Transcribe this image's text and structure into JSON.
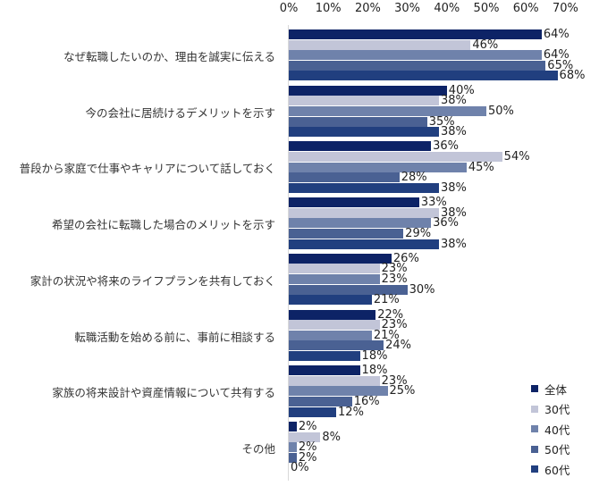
{
  "chart_data": {
    "type": "bar",
    "orientation": "horizontal",
    "title": "",
    "xlabel": "",
    "ylabel": "",
    "xlim": [
      0,
      70
    ],
    "x_ticks": [
      "0%",
      "10%",
      "20%",
      "30%",
      "40%",
      "50%",
      "60%",
      "70%"
    ],
    "grid": false,
    "legend_position": "bottom-right",
    "categories": [
      "なぜ転職したいのか、理由を誠実に伝える",
      "今の会社に居続けるデメリットを示す",
      "普段から家庭で仕事やキャリアについて話しておく",
      "希望の会社に転職した場合のメリットを示す",
      "家計の状況や将来のライフプランを共有しておく",
      "転職活動を始める前に、事前に相談する",
      "家族の将来設計や資産情報について共有する",
      "その他"
    ],
    "series": [
      {
        "name": "全体",
        "color": "#0d2366",
        "values": [
          64,
          40,
          36,
          33,
          26,
          22,
          18,
          2
        ]
      },
      {
        "name": "30代",
        "color": "#c2c5d8",
        "values": [
          46,
          38,
          54,
          38,
          23,
          23,
          23,
          8
        ]
      },
      {
        "name": "40代",
        "color": "#6f82ab",
        "values": [
          64,
          50,
          45,
          36,
          23,
          21,
          25,
          2
        ]
      },
      {
        "name": "50代",
        "color": "#4a6193",
        "values": [
          65,
          35,
          28,
          29,
          30,
          24,
          16,
          2
        ]
      },
      {
        "name": "60代",
        "color": "#213f7f",
        "values": [
          68,
          38,
          38,
          38,
          21,
          18,
          12,
          0
        ]
      }
    ]
  }
}
